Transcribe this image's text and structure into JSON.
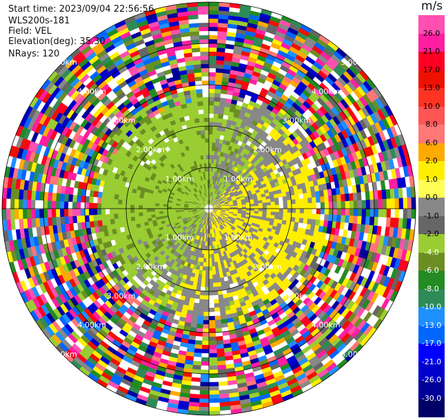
{
  "header": {
    "start_time": "Start time: 2023/09/04 22:56:56",
    "site": "WLS200s-181",
    "field": "Field: VEL",
    "elevation": "Elevation(deg): 35.30",
    "nrays": "NRays: 120"
  },
  "colorbar": {
    "unit": "m/s",
    "labels": [
      "26.0",
      "21.0",
      "17.0",
      "13.0",
      "10.0",
      "8.0",
      "6.0",
      "2.0",
      "1.0",
      "0.0",
      "-1.0",
      "-2.0",
      "-4.0",
      "-6.0",
      "-8.0",
      "-10.0",
      "-13.0",
      "-17.0",
      "-21.0",
      "-26.0",
      "-30.0"
    ],
    "colors": [
      "#ff4fb0",
      "#ff1ea0",
      "#ff0022",
      "#ee1100",
      "#ff3322",
      "#ff5555",
      "#ff7777",
      "#ffaa00",
      "#ffee00",
      "#ffff55",
      "#888888",
      "#666666",
      "#9acd32",
      "#6b8e23",
      "#228b22",
      "#2e8b57",
      "#1e90ff",
      "#0066ff",
      "#0000ff",
      "#0000cc",
      "#000099",
      "#000066"
    ]
  },
  "rings": [
    {
      "label": "1.00km"
    },
    {
      "label": "2.00km"
    },
    {
      "label": "3.00km"
    },
    {
      "label": "4.00km"
    },
    {
      "label": "5.00km"
    }
  ]
}
